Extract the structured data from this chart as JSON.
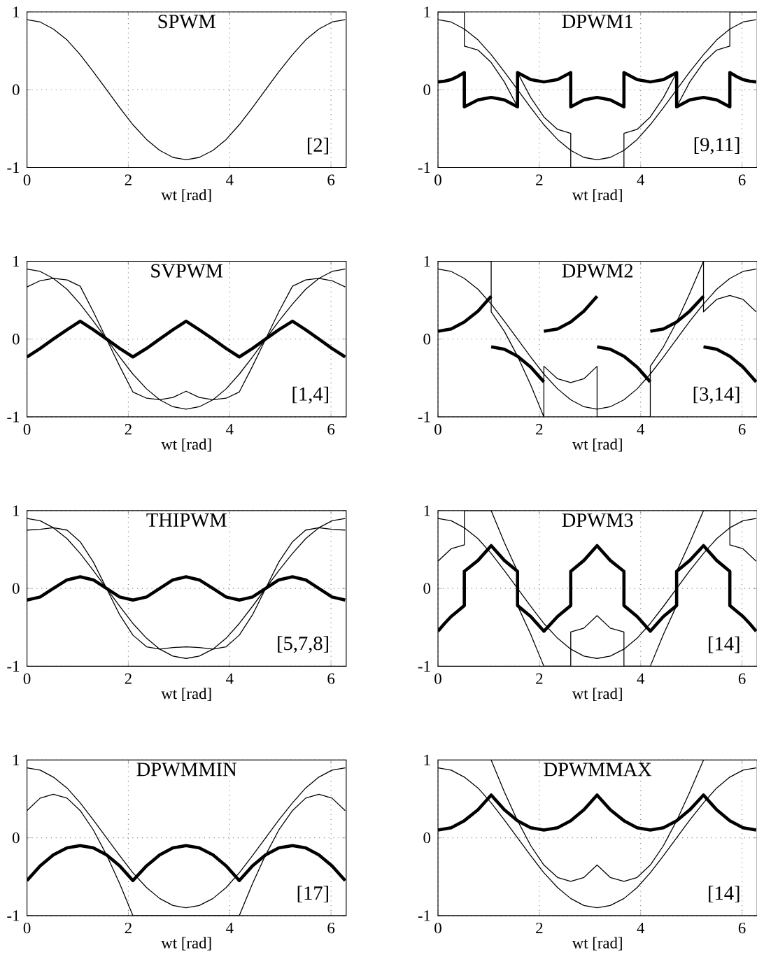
{
  "chart_data": [
    {
      "type": "line",
      "title": "SPWM",
      "xlabel": "wt [rad]",
      "xlim": [
        0,
        6.3
      ],
      "ylim": [
        -1,
        1
      ],
      "xticks": [
        0,
        2,
        4,
        6
      ],
      "yticks": [
        -1,
        0,
        1
      ],
      "grid": true,
      "annotations": [
        "[2]"
      ],
      "x": [
        0,
        0.26,
        0.52,
        0.79,
        1.05,
        1.31,
        1.57,
        1.83,
        2.09,
        2.36,
        2.62,
        2.88,
        3.14,
        3.4,
        3.67,
        3.93,
        4.19,
        4.45,
        4.71,
        4.97,
        5.24,
        5.5,
        5.76,
        6.02,
        6.28
      ],
      "series": [
        {
          "color": "#000000",
          "values": [
            0.9,
            0.87,
            0.78,
            0.64,
            0.45,
            0.23,
            0,
            -0.23,
            -0.45,
            -0.64,
            -0.78,
            -0.87,
            -0.9,
            -0.87,
            -0.78,
            -0.64,
            -0.45,
            -0.23,
            0,
            0.23,
            0.45,
            0.64,
            0.78,
            0.87,
            0.9
          ]
        }
      ]
    },
    {
      "type": "line",
      "title": "DPWM1",
      "xlabel": "wt [rad]",
      "xlim": [
        0,
        6.3
      ],
      "ylim": [
        -1,
        1
      ],
      "xticks": [
        0,
        2,
        4,
        6
      ],
      "yticks": [
        -1,
        0,
        1
      ],
      "grid": true,
      "annotations": [
        "[9,11]"
      ],
      "x": [
        0,
        0.26,
        0.52,
        0.79,
        1.05,
        1.31,
        1.57,
        1.83,
        2.09,
        2.36,
        2.62,
        2.88,
        3.14,
        3.4,
        3.67,
        3.93,
        4.19,
        4.45,
        4.71,
        4.97,
        5.24,
        5.5,
        5.76,
        6.02,
        6.28
      ],
      "series": [
        {
          "color": "#000000",
          "values": [
            0.9,
            0.87,
            0.78,
            0.64,
            0.45,
            0.23,
            0,
            -0.23,
            -0.45,
            -0.64,
            -0.78,
            -0.87,
            -0.9,
            -0.87,
            -0.78,
            -0.64,
            -0.45,
            -0.23,
            0,
            0.23,
            0.45,
            0.64,
            0.78,
            0.87,
            0.9
          ]
        },
        {
          "color": "#000000",
          "x": [
            0,
            0.26,
            0.52,
            0.52,
            0.79,
            1.05,
            1.31,
            1.57,
            1.57,
            1.83,
            2.09,
            2.36,
            2.62,
            2.62,
            2.88,
            3.14,
            3.4,
            3.67,
            3.67,
            3.93,
            4.19,
            4.45,
            4.71,
            4.71,
            4.97,
            5.24,
            5.5,
            5.76,
            5.76,
            6.02,
            6.28
          ],
          "values": [
            1,
            1,
            1,
            0.56,
            0.51,
            0.35,
            0.1,
            -0.22,
            0.22,
            -0.1,
            -0.35,
            -0.51,
            -0.56,
            -1,
            -1,
            -1,
            -1,
            -1,
            -0.56,
            -0.51,
            -0.35,
            -0.1,
            0.22,
            -0.22,
            0.1,
            0.35,
            0.51,
            0.56,
            1,
            1,
            1
          ]
        },
        {
          "color": "#000000",
          "x": [
            0,
            0.13,
            0.26,
            0.39,
            0.52,
            0.52,
            0.79,
            1.05,
            1.31,
            1.57,
            1.57,
            1.83,
            2.09,
            2.36,
            2.62,
            2.62,
            2.88,
            3.14,
            3.4,
            3.67,
            3.67,
            3.93,
            4.19,
            4.45,
            4.71,
            4.71,
            4.97,
            5.24,
            5.5,
            5.76,
            5.76,
            5.89,
            6.02,
            6.15,
            6.28
          ],
          "values": [
            0.1,
            0.11,
            0.13,
            0.17,
            0.22,
            -0.22,
            -0.13,
            -0.1,
            -0.13,
            -0.22,
            0.22,
            0.13,
            0.1,
            0.13,
            0.22,
            -0.22,
            -0.13,
            -0.1,
            -0.13,
            -0.22,
            0.22,
            0.13,
            0.1,
            0.13,
            0.22,
            -0.22,
            -0.13,
            -0.1,
            -0.13,
            -0.22,
            0.22,
            0.17,
            0.13,
            0.11,
            0.1
          ]
        }
      ]
    },
    {
      "type": "line",
      "title": "SVPWM",
      "xlabel": "wt [rad]",
      "xlim": [
        0,
        6.3
      ],
      "ylim": [
        -1,
        1
      ],
      "xticks": [
        0,
        2,
        4,
        6
      ],
      "yticks": [
        -1,
        0,
        1
      ],
      "grid": true,
      "annotations": [
        "[1,4]"
      ],
      "x": [
        0,
        0.26,
        0.52,
        0.79,
        1.05,
        1.31,
        1.57,
        1.83,
        2.09,
        2.36,
        2.62,
        2.88,
        3.14,
        3.4,
        3.67,
        3.93,
        4.19,
        4.45,
        4.71,
        4.97,
        5.24,
        5.5,
        5.76,
        6.02,
        6.28
      ],
      "series": [
        {
          "color": "#000000",
          "values": [
            0.9,
            0.87,
            0.78,
            0.64,
            0.45,
            0.23,
            0,
            -0.23,
            -0.45,
            -0.64,
            -0.78,
            -0.87,
            -0.9,
            -0.87,
            -0.78,
            -0.64,
            -0.45,
            -0.23,
            0,
            0.23,
            0.45,
            0.64,
            0.78,
            0.87,
            0.9
          ]
        },
        {
          "color": "#000000",
          "values": [
            0.67,
            0.75,
            0.78,
            0.76,
            0.68,
            0.35,
            0,
            -0.35,
            -0.68,
            -0.76,
            -0.78,
            -0.75,
            -0.67,
            -0.75,
            -0.78,
            -0.76,
            -0.68,
            -0.35,
            0,
            0.35,
            0.68,
            0.76,
            0.78,
            0.75,
            0.67
          ]
        },
        {
          "color": "#000000",
          "values": [
            -0.23,
            -0.12,
            0,
            0.12,
            0.23,
            0.12,
            0,
            -0.12,
            -0.23,
            -0.12,
            0,
            0.12,
            0.23,
            0.12,
            0,
            -0.12,
            -0.23,
            -0.12,
            0,
            0.12,
            0.23,
            0.12,
            0,
            -0.12,
            -0.23
          ]
        }
      ]
    },
    {
      "type": "line",
      "title": "DPWM2",
      "xlabel": "wt [rad]",
      "xlim": [
        0,
        6.3
      ],
      "ylim": [
        -1,
        1
      ],
      "xticks": [
        0,
        2,
        4,
        6
      ],
      "yticks": [
        -1,
        0,
        1
      ],
      "grid": true,
      "annotations": [
        "[3,14]"
      ],
      "x": [
        0,
        0.26,
        0.52,
        0.79,
        1.05,
        1.31,
        1.57,
        1.83,
        2.09,
        2.36,
        2.62,
        2.88,
        3.14,
        3.4,
        3.67,
        3.93,
        4.19,
        4.45,
        4.71,
        4.97,
        5.24,
        5.5,
        5.76,
        6.02,
        6.28
      ],
      "series": [
        {
          "color": "#000000",
          "values": [
            0.9,
            0.87,
            0.78,
            0.64,
            0.45,
            0.23,
            0,
            -0.23,
            -0.45,
            -0.64,
            -0.78,
            -0.87,
            -0.9,
            -0.87,
            -0.78,
            -0.64,
            -0.45,
            -0.23,
            0,
            0.23,
            0.45,
            0.64,
            0.78,
            0.87,
            0.9
          ]
        },
        {
          "color": "#000000",
          "x": [
            0,
            0.26,
            0.52,
            0.79,
            1.05,
            1.05,
            1.31,
            1.57,
            1.83,
            2.09,
            2.09,
            2.36,
            2.62,
            2.88,
            3.14,
            3.14,
            3.4,
            3.67,
            3.93,
            4.19,
            4.19,
            4.45,
            4.71,
            4.97,
            5.24,
            5.24,
            5.5,
            5.76,
            6.02,
            6.28
          ],
          "values": [
            1,
            1,
            1,
            1,
            1,
            0.35,
            0.1,
            -0.22,
            -0.59,
            -1,
            -0.35,
            -0.51,
            -0.56,
            -0.51,
            -0.35,
            -1,
            -1,
            -1,
            -1,
            -1,
            -0.35,
            -0.1,
            0.22,
            0.59,
            1,
            0.35,
            0.51,
            0.56,
            0.51,
            0.35
          ]
        },
        {
          "color": "#000000",
          "x": [
            0,
            0.26,
            0.52,
            0.79,
            1.05
          ],
          "values": [
            0.1,
            0.13,
            0.22,
            0.36,
            0.55
          ]
        },
        {
          "color": "#000000",
          "x": [
            1.05,
            1.31,
            1.57,
            1.83,
            2.09
          ],
          "values": [
            -0.1,
            -0.13,
            -0.22,
            -0.36,
            -0.55
          ]
        },
        {
          "color": "#000000",
          "x": [
            2.09,
            2.36,
            2.62,
            2.88,
            3.14
          ],
          "values": [
            0.1,
            0.13,
            0.22,
            0.36,
            0.55
          ]
        },
        {
          "color": "#000000",
          "x": [
            3.14,
            3.4,
            3.67,
            3.93,
            4.19
          ],
          "values": [
            -0.1,
            -0.13,
            -0.22,
            -0.36,
            -0.55
          ]
        },
        {
          "color": "#000000",
          "x": [
            4.19,
            4.45,
            4.71,
            4.97,
            5.24
          ],
          "values": [
            0.1,
            0.13,
            0.22,
            0.36,
            0.55
          ]
        },
        {
          "color": "#000000",
          "x": [
            5.24,
            5.5,
            5.76,
            6.02,
            6.28
          ],
          "values": [
            -0.1,
            -0.13,
            -0.22,
            -0.36,
            -0.55
          ]
        }
      ]
    },
    {
      "type": "line",
      "title": "THIPWM",
      "xlabel": "wt [rad]",
      "xlim": [
        0,
        6.3
      ],
      "ylim": [
        -1,
        1
      ],
      "xticks": [
        0,
        2,
        4,
        6
      ],
      "yticks": [
        -1,
        0,
        1
      ],
      "grid": true,
      "annotations": [
        "[5,7,8]"
      ],
      "x": [
        0,
        0.26,
        0.52,
        0.79,
        1.05,
        1.31,
        1.57,
        1.83,
        2.09,
        2.36,
        2.62,
        2.88,
        3.14,
        3.4,
        3.67,
        3.93,
        4.19,
        4.45,
        4.71,
        4.97,
        5.24,
        5.5,
        5.76,
        6.02,
        6.28
      ],
      "series": [
        {
          "color": "#000000",
          "values": [
            0.9,
            0.87,
            0.78,
            0.64,
            0.45,
            0.23,
            0,
            -0.23,
            -0.45,
            -0.64,
            -0.78,
            -0.87,
            -0.9,
            -0.87,
            -0.78,
            -0.64,
            -0.45,
            -0.23,
            0,
            0.23,
            0.45,
            0.64,
            0.78,
            0.87,
            0.9
          ]
        },
        {
          "color": "#000000",
          "values": [
            0.75,
            0.76,
            0.78,
            0.75,
            0.6,
            0.34,
            0,
            -0.34,
            -0.6,
            -0.75,
            -0.78,
            -0.76,
            -0.75,
            -0.76,
            -0.78,
            -0.75,
            -0.6,
            -0.34,
            0,
            0.34,
            0.6,
            0.75,
            0.78,
            0.76,
            0.75
          ]
        },
        {
          "color": "#000000",
          "values": [
            -0.15,
            -0.11,
            0,
            0.11,
            0.15,
            0.11,
            0,
            -0.11,
            -0.15,
            -0.11,
            0,
            0.11,
            0.15,
            0.11,
            0,
            -0.11,
            -0.15,
            -0.11,
            0,
            0.11,
            0.15,
            0.11,
            0,
            -0.11,
            -0.15
          ]
        }
      ]
    },
    {
      "type": "line",
      "title": "DPWM3",
      "xlabel": "wt [rad]",
      "xlim": [
        0,
        6.3
      ],
      "ylim": [
        -1,
        1
      ],
      "xticks": [
        0,
        2,
        4,
        6
      ],
      "yticks": [
        -1,
        0,
        1
      ],
      "grid": true,
      "annotations": [
        "[14]"
      ],
      "x": [
        0,
        0.26,
        0.52,
        0.79,
        1.05,
        1.31,
        1.57,
        1.83,
        2.09,
        2.36,
        2.62,
        2.88,
        3.14,
        3.4,
        3.67,
        3.93,
        4.19,
        4.45,
        4.71,
        4.97,
        5.24,
        5.5,
        5.76,
        6.02,
        6.28
      ],
      "series": [
        {
          "color": "#000000",
          "values": [
            0.9,
            0.87,
            0.78,
            0.64,
            0.45,
            0.23,
            0,
            -0.23,
            -0.45,
            -0.64,
            -0.78,
            -0.87,
            -0.9,
            -0.87,
            -0.78,
            -0.64,
            -0.45,
            -0.23,
            0,
            0.23,
            0.45,
            0.64,
            0.78,
            0.87,
            0.9
          ]
        },
        {
          "color": "#000000",
          "x": [
            0,
            0.26,
            0.52,
            0.52,
            0.79,
            1.05,
            1.31,
            1.57,
            1.57,
            1.83,
            2.09,
            2.36,
            2.62,
            2.62,
            2.88,
            3.14,
            3.4,
            3.67,
            3.67,
            3.93,
            4.19,
            4.45,
            4.71,
            4.71,
            4.97,
            5.24,
            5.5,
            5.76,
            5.76,
            6.02,
            6.28
          ],
          "values": [
            0.35,
            0.51,
            0.56,
            1,
            1,
            1,
            0.59,
            0.22,
            -0.22,
            -0.59,
            -1,
            -1,
            -1,
            -0.56,
            -0.51,
            -0.35,
            -0.51,
            -0.56,
            -1,
            -1,
            -1,
            -0.59,
            -0.22,
            0.22,
            0.59,
            1,
            1,
            1,
            0.56,
            0.51,
            0.35
          ]
        },
        {
          "color": "#000000",
          "x": [
            0,
            0.13,
            0.26,
            0.39,
            0.52,
            0.52,
            0.79,
            1.05,
            1.31,
            1.57,
            1.57,
            1.83,
            2.09,
            2.36,
            2.62,
            2.62,
            2.88,
            3.14,
            3.4,
            3.67,
            3.67,
            3.93,
            4.19,
            4.45,
            4.71,
            4.71,
            4.97,
            5.24,
            5.5,
            5.76,
            5.76,
            5.89,
            6.02,
            6.15,
            6.28
          ],
          "values": [
            -0.55,
            -0.45,
            -0.36,
            -0.29,
            -0.22,
            0.22,
            0.36,
            0.55,
            0.36,
            0.22,
            -0.22,
            -0.36,
            -0.55,
            -0.36,
            -0.22,
            0.22,
            0.36,
            0.55,
            0.36,
            0.22,
            -0.22,
            -0.36,
            -0.55,
            -0.36,
            -0.22,
            0.22,
            0.36,
            0.55,
            0.36,
            0.22,
            -0.22,
            -0.29,
            -0.36,
            -0.45,
            -0.55
          ]
        }
      ]
    },
    {
      "type": "line",
      "title": "DPWMMIN",
      "xlabel": "wt [rad]",
      "xlim": [
        0,
        6.3
      ],
      "ylim": [
        -1,
        1
      ],
      "xticks": [
        0,
        2,
        4,
        6
      ],
      "yticks": [
        -1,
        0,
        1
      ],
      "grid": true,
      "annotations": [
        "[17]"
      ],
      "x": [
        0,
        0.26,
        0.52,
        0.79,
        1.05,
        1.31,
        1.57,
        1.83,
        2.09,
        2.36,
        2.62,
        2.88,
        3.14,
        3.4,
        3.67,
        3.93,
        4.19,
        4.45,
        4.71,
        4.97,
        5.24,
        5.5,
        5.76,
        6.02,
        6.28
      ],
      "series": [
        {
          "color": "#000000",
          "values": [
            0.9,
            0.87,
            0.78,
            0.64,
            0.45,
            0.23,
            0,
            -0.23,
            -0.45,
            -0.64,
            -0.78,
            -0.87,
            -0.9,
            -0.87,
            -0.78,
            -0.64,
            -0.45,
            -0.23,
            0,
            0.23,
            0.45,
            0.64,
            0.78,
            0.87,
            0.9
          ]
        },
        {
          "color": "#000000",
          "values": [
            0.35,
            0.51,
            0.56,
            0.51,
            0.35,
            0.1,
            -0.22,
            -0.59,
            -1,
            -1,
            -1,
            -1,
            -1,
            -1,
            -1,
            -1,
            -1,
            -0.59,
            -0.22,
            0.1,
            0.35,
            0.51,
            0.56,
            0.51,
            0.35
          ]
        },
        {
          "color": "#000000",
          "values": [
            -0.55,
            -0.36,
            -0.22,
            -0.13,
            -0.1,
            -0.13,
            -0.22,
            -0.36,
            -0.55,
            -0.36,
            -0.22,
            -0.13,
            -0.1,
            -0.13,
            -0.22,
            -0.36,
            -0.55,
            -0.36,
            -0.22,
            -0.13,
            -0.1,
            -0.13,
            -0.22,
            -0.36,
            -0.55
          ]
        }
      ]
    },
    {
      "type": "line",
      "title": "DPWMMAX",
      "xlabel": "wt [rad]",
      "xlim": [
        0,
        6.3
      ],
      "ylim": [
        -1,
        1
      ],
      "xticks": [
        0,
        2,
        4,
        6
      ],
      "yticks": [
        -1,
        0,
        1
      ],
      "grid": true,
      "annotations": [
        "[14]"
      ],
      "x": [
        0,
        0.26,
        0.52,
        0.79,
        1.05,
        1.31,
        1.57,
        1.83,
        2.09,
        2.36,
        2.62,
        2.88,
        3.14,
        3.4,
        3.67,
        3.93,
        4.19,
        4.45,
        4.71,
        4.97,
        5.24,
        5.5,
        5.76,
        6.02,
        6.28
      ],
      "series": [
        {
          "color": "#000000",
          "values": [
            0.9,
            0.87,
            0.78,
            0.64,
            0.45,
            0.23,
            0,
            -0.23,
            -0.45,
            -0.64,
            -0.78,
            -0.87,
            -0.9,
            -0.87,
            -0.78,
            -0.64,
            -0.45,
            -0.23,
            0,
            0.23,
            0.45,
            0.64,
            0.78,
            0.87,
            0.9
          ]
        },
        {
          "color": "#000000",
          "values": [
            1,
            1,
            1,
            1,
            1,
            0.59,
            0.22,
            -0.1,
            -0.35,
            -0.51,
            -0.56,
            -0.51,
            -0.35,
            -0.51,
            -0.56,
            -0.51,
            -0.35,
            -0.1,
            0.22,
            0.59,
            1,
            1,
            1,
            1,
            1
          ]
        },
        {
          "color": "#000000",
          "values": [
            0.1,
            0.13,
            0.22,
            0.36,
            0.55,
            0.36,
            0.22,
            0.13,
            0.1,
            0.13,
            0.22,
            0.36,
            0.55,
            0.36,
            0.22,
            0.13,
            0.1,
            0.13,
            0.22,
            0.36,
            0.55,
            0.36,
            0.22,
            0.13,
            0.1
          ]
        }
      ]
    }
  ]
}
